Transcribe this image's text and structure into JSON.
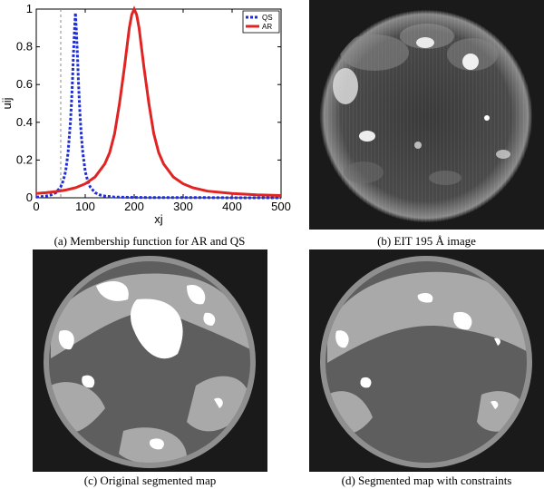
{
  "panels": {
    "a": {
      "caption": "(a) Membership function for AR and QS"
    },
    "b": {
      "caption": "(b) EIT 195 Å image"
    },
    "c": {
      "caption": "(c) Original segmented map"
    },
    "d": {
      "caption": "(d) Segmented map with constraints"
    }
  },
  "chart_data": {
    "type": "line",
    "title": "",
    "xlabel": "xj",
    "ylabel": "uij",
    "xlim": [
      0,
      500
    ],
    "ylim": [
      0,
      1
    ],
    "xticks": [
      0,
      100,
      200,
      300,
      400,
      500
    ],
    "yticks": [
      0,
      0.2,
      0.4,
      0.6,
      0.8,
      1
    ],
    "ytick_labels": [
      "0",
      "0.2",
      "0.4",
      "0.6",
      "0.8",
      "1"
    ],
    "grid": false,
    "legend_position": "top-right",
    "vline_x": 50,
    "series": [
      {
        "name": "QS",
        "color": "#1f2ed6",
        "style": "dashed",
        "x": [
          0,
          10,
          20,
          30,
          40,
          50,
          55,
          60,
          65,
          70,
          72,
          74,
          76,
          78,
          80,
          82,
          84,
          86,
          88,
          90,
          92,
          95,
          100,
          105,
          110,
          120,
          130,
          140,
          160,
          180,
          200,
          250,
          300,
          350,
          400,
          450,
          500
        ],
        "y": [
          0.004,
          0.006,
          0.009,
          0.015,
          0.027,
          0.058,
          0.09,
          0.14,
          0.24,
          0.41,
          0.51,
          0.63,
          0.76,
          0.88,
          0.98,
          0.88,
          0.76,
          0.63,
          0.51,
          0.41,
          0.33,
          0.24,
          0.14,
          0.09,
          0.058,
          0.027,
          0.015,
          0.009,
          0.004,
          0.003,
          0.002,
          0.001,
          0.001,
          0.001,
          0.0,
          0.0,
          0.0
        ]
      },
      {
        "name": "AR",
        "color": "#e02424",
        "style": "solid",
        "x": [
          0,
          20,
          40,
          60,
          80,
          100,
          120,
          140,
          150,
          160,
          170,
          180,
          190,
          195,
          200,
          205,
          210,
          220,
          230,
          240,
          250,
          260,
          280,
          300,
          320,
          350,
          400,
          450,
          500
        ],
        "y": [
          0.023,
          0.027,
          0.033,
          0.041,
          0.053,
          0.074,
          0.11,
          0.18,
          0.24,
          0.34,
          0.5,
          0.69,
          0.9,
          0.97,
          1.0,
          0.97,
          0.9,
          0.69,
          0.5,
          0.34,
          0.24,
          0.18,
          0.11,
          0.074,
          0.053,
          0.035,
          0.023,
          0.016,
          0.012
        ]
      }
    ]
  },
  "colors": {
    "qs": "#1f2ed6",
    "ar": "#e02424",
    "map_dark": "#5e5e5e",
    "map_mid": "#a9a9a9",
    "map_white": "#ffffff",
    "background": "#1a1a1a"
  }
}
